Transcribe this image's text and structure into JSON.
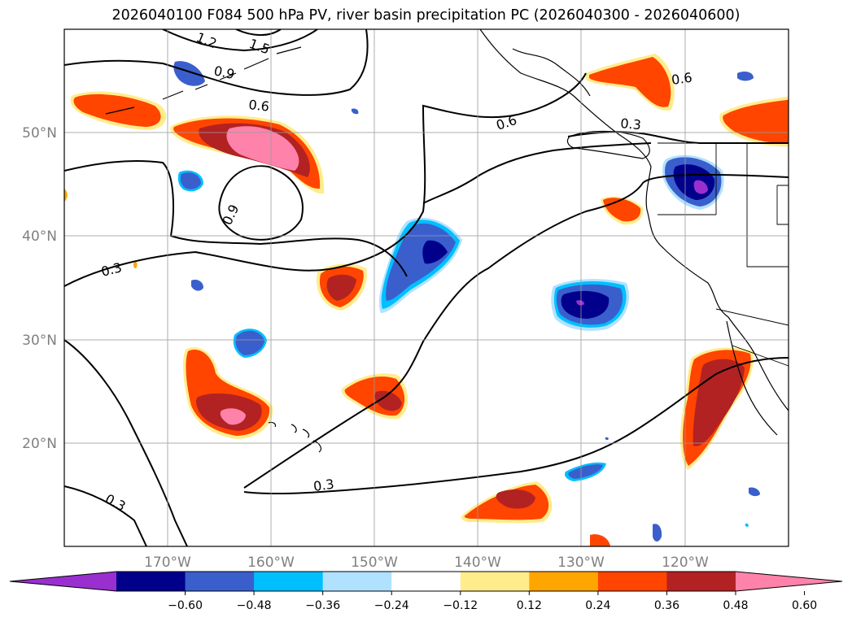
{
  "title": "2026040100 F084 500 hPa PV, river basin precipitation PC (2026040300 - 2026040600)",
  "map": {
    "lon_labels": [
      "170°W",
      "160°W",
      "150°W",
      "140°W",
      "130°W",
      "120°W"
    ],
    "lat_labels": [
      "50°N",
      "40°N",
      "30°N",
      "20°N"
    ],
    "lon_values": [
      -170,
      -160,
      -150,
      -140,
      -130,
      -120
    ],
    "lat_values": [
      50,
      40,
      30,
      20
    ],
    "lon_range": [
      -180,
      -110
    ],
    "lat_range": [
      10,
      60
    ],
    "gridlines": true
  },
  "pv_contour_labels": [
    {
      "text": "0.9"
    },
    {
      "text": "0.6"
    },
    {
      "text": "1.2"
    },
    {
      "text": "1.5"
    },
    {
      "text": "0.6"
    },
    {
      "text": "0.6"
    },
    {
      "text": "0.3"
    },
    {
      "text": "0.9"
    },
    {
      "text": "0.3"
    },
    {
      "text": "0.3"
    },
    {
      "text": "0.3"
    }
  ],
  "colorbar": {
    "colors": [
      "#9a2fd0",
      "#00008b",
      "#3a5fcd",
      "#00bfff",
      "#b0e2ff",
      "#ffffff",
      "#ffec8b",
      "#ffa500",
      "#ff4500",
      "#b22222",
      "#ff82ab"
    ],
    "tick_labels": [
      "−0.60",
      "−0.48",
      "−0.36",
      "−0.24",
      "−0.12",
      "0.12",
      "0.24",
      "0.36",
      "0.48",
      "0.60"
    ]
  }
}
